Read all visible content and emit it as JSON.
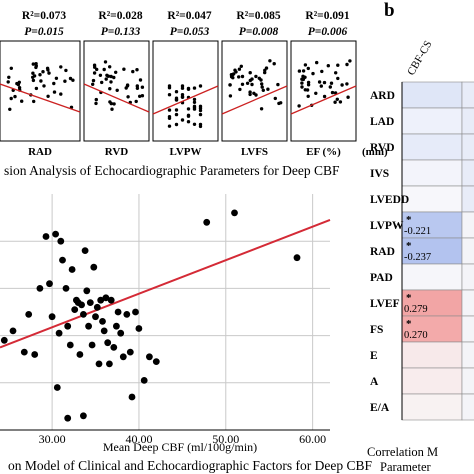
{
  "panel_b_label": "b",
  "top_panel": {
    "caption": "sion Analysis of Echocardiographic Parameters for Deep CBF",
    "unit_label": "(mm)",
    "subplots": [
      {
        "name": "RAD",
        "r2": "R²=0.073",
        "p": "P=0.015"
      },
      {
        "name": "RVD",
        "r2": "R²=0.028",
        "p": "P=0.133"
      },
      {
        "name": "LVPW",
        "r2": "R²=0.047",
        "p": "P=0.053"
      },
      {
        "name": "LVFS",
        "r2": "R²=0.085",
        "p": "P=0.008"
      },
      {
        "name": "EF (%)",
        "r2": "R²=0.091",
        "p": "P=0.006"
      }
    ]
  },
  "chart_data": [
    {
      "type": "scatter",
      "title": "on Model of Clinical and Echocardiographic Factors for Deep CBF",
      "xlabel": "Mean Deep CBF (ml/100g/min)",
      "ylabel": "",
      "xlim": [
        24,
        62
      ],
      "ylim": [
        0,
        10
      ],
      "xticks": [
        "30.00",
        "40.00",
        "50.00",
        "60.00"
      ],
      "grid": true,
      "series": [
        {
          "points": [
            [
              24.5,
              3.8
            ],
            [
              25.5,
              4.2
            ],
            [
              26.8,
              3.3
            ],
            [
              27.3,
              4.9
            ],
            [
              28.0,
              3.2
            ],
            [
              28.6,
              6.0
            ],
            [
              29.3,
              8.2
            ],
            [
              29.7,
              6.2
            ],
            [
              30.0,
              4.8
            ],
            [
              30.4,
              8.3
            ],
            [
              30.8,
              4.1
            ],
            [
              31.0,
              8.0
            ],
            [
              31.2,
              7.2
            ],
            [
              31.6,
              6.0
            ],
            [
              31.8,
              4.4
            ],
            [
              32.1,
              3.6
            ],
            [
              32.3,
              6.8
            ],
            [
              32.6,
              5.1
            ],
            [
              32.8,
              5.5
            ],
            [
              33.0,
              5.4
            ],
            [
              33.2,
              3.2
            ],
            [
              33.4,
              5.3
            ],
            [
              33.6,
              4.9
            ],
            [
              33.8,
              7.6
            ],
            [
              34.0,
              5.9
            ],
            [
              34.2,
              4.4
            ],
            [
              34.4,
              5.4
            ],
            [
              34.6,
              3.6
            ],
            [
              34.8,
              6.9
            ],
            [
              35.0,
              4.8
            ],
            [
              35.2,
              5.2
            ],
            [
              35.4,
              2.8
            ],
            [
              35.6,
              5.5
            ],
            [
              35.8,
              4.6
            ],
            [
              36.0,
              4.2
            ],
            [
              36.2,
              5.6
            ],
            [
              36.4,
              3.7
            ],
            [
              36.6,
              2.8
            ],
            [
              36.8,
              5.5
            ],
            [
              37.1,
              3.5
            ],
            [
              37.4,
              4.4
            ],
            [
              37.6,
              5.0
            ],
            [
              37.9,
              4.1
            ],
            [
              38.2,
              3.1
            ],
            [
              38.6,
              4.9
            ],
            [
              39.0,
              3.3
            ],
            [
              39.2,
              1.4
            ],
            [
              39.6,
              5.0
            ],
            [
              40.0,
              4.3
            ],
            [
              40.6,
              2.1
            ],
            [
              41.2,
              3.1
            ],
            [
              42.0,
              2.9
            ],
            [
              30.6,
              1.8
            ],
            [
              31.8,
              0.5
            ],
            [
              33.6,
              0.6
            ],
            [
              47.8,
              8.8
            ],
            [
              51.0,
              9.2
            ],
            [
              58.2,
              7.3
            ]
          ]
        },
        {
          "name": "fit",
          "line": [
            [
              24,
              3.5
            ],
            [
              62,
              8.9
            ]
          ]
        }
      ]
    },
    {
      "type": "table",
      "title": "Correlation M",
      "subtitle": "Parameter",
      "column_header": "CBF-CS",
      "rows": [
        {
          "label": "ARD",
          "value": "",
          "star": false,
          "color": "#dfe6f7"
        },
        {
          "label": "LAD",
          "value": "",
          "star": false,
          "color": "#eef1fb"
        },
        {
          "label": "RVD",
          "value": "",
          "star": false,
          "color": "#e6ebf9"
        },
        {
          "label": "IVS",
          "value": "",
          "star": false,
          "color": "#f3f4fb"
        },
        {
          "label": "LVEDD",
          "value": "",
          "star": false,
          "color": "#f7f7fb"
        },
        {
          "label": "LVPW",
          "value": "-0.221",
          "star": true,
          "color": "#b9c8f0"
        },
        {
          "label": "RAD",
          "value": "-0.237",
          "star": true,
          "color": "#b3c3ef"
        },
        {
          "label": "PAD",
          "value": "",
          "star": false,
          "color": "#f6f6fa"
        },
        {
          "label": "LVEF",
          "value": "0.279",
          "star": true,
          "color": "#f2a5a5"
        },
        {
          "label": "FS",
          "value": "0.270",
          "star": true,
          "color": "#f3aaaa"
        },
        {
          "label": "E",
          "value": "",
          "star": false,
          "color": "#f7e9ea"
        },
        {
          "label": "A",
          "value": "",
          "star": false,
          "color": "#f8eced"
        },
        {
          "label": "E/A",
          "value": "",
          "star": false,
          "color": "#f8f2f2"
        }
      ]
    }
  ]
}
